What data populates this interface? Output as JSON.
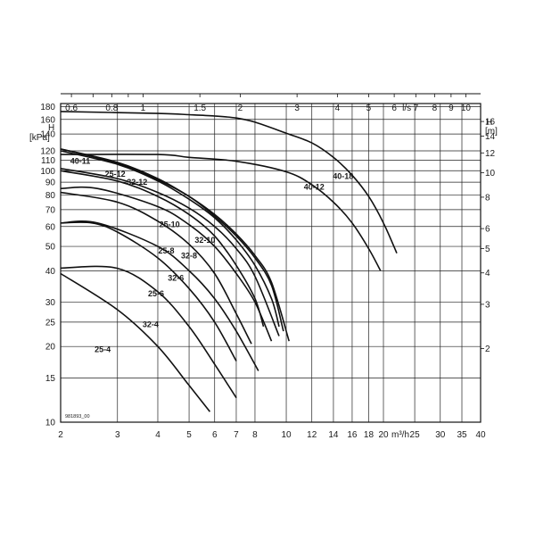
{
  "chart_data": {
    "type": "line",
    "x_scale": "log",
    "y_scale": "log",
    "grid": true,
    "x_axis_bottom": {
      "label": "m³/h",
      "range": [
        2,
        40
      ],
      "ticks": [
        2,
        3,
        4,
        5,
        6,
        7,
        8,
        10,
        12,
        14,
        16,
        18,
        20,
        25,
        30,
        35,
        40
      ],
      "tick_labels": [
        "2",
        "3",
        "4",
        "5",
        "6",
        "7",
        "8",
        "10",
        "12",
        "14",
        "16",
        "18",
        "20 m³/h",
        "25",
        "30",
        "35",
        "40"
      ]
    },
    "x_axis_top": {
      "label": "l/s",
      "ticks": [
        0.6,
        0.8,
        1,
        1.5,
        2,
        3,
        4,
        5,
        6,
        7,
        8,
        9,
        10
      ],
      "tick_labels": [
        "0.6",
        "0.8",
        "1",
        "1.5",
        "2",
        "3",
        "4",
        "5",
        "6 l/s",
        "7",
        "8",
        "9",
        "10"
      ]
    },
    "y_axis_left": {
      "title": "H",
      "unit": "[kPa]",
      "range": [
        10,
        180
      ],
      "ticks": [
        10,
        15,
        20,
        25,
        30,
        40,
        50,
        60,
        70,
        80,
        90,
        100,
        110,
        120,
        140,
        160,
        180
      ],
      "tick_labels": [
        "10",
        "15",
        "20",
        "25",
        "30",
        "40",
        "50",
        "60",
        "70",
        "80",
        "90",
        "100",
        "110",
        "120",
        "140",
        "160",
        "180"
      ]
    },
    "y_axis_right": {
      "title": "H",
      "unit": "[m]",
      "ticks": [
        2,
        3,
        4,
        5,
        6,
        8,
        10,
        12,
        14,
        16
      ],
      "tick_labels": [
        "2",
        "3",
        "4",
        "5",
        "6",
        "8",
        "10",
        "12",
        "14",
        "16"
      ]
    },
    "series": [
      {
        "name": "25-4",
        "x": [
          2.0,
          3.0,
          4.0,
          5.0,
          5.8
        ],
        "y": [
          39,
          28,
          20,
          14,
          11
        ]
      },
      {
        "name": "32-4",
        "x": [
          2.0,
          2.98,
          4.0,
          5.0,
          6.0,
          7.0
        ],
        "y": [
          41,
          41,
          33,
          24,
          17,
          12.5
        ]
      },
      {
        "name": "25-6",
        "x": [
          2.0,
          2.5,
          3.0,
          4.0,
          5.0,
          6.0,
          7.0
        ],
        "y": [
          62,
          62,
          57,
          45,
          34,
          25,
          17.5
        ]
      },
      {
        "name": "32-6",
        "x": [
          2.0,
          2.6,
          4.0,
          5.0,
          6.0,
          7.0,
          8.2
        ],
        "y": [
          62,
          62,
          50,
          40,
          31,
          23,
          16
        ]
      },
      {
        "name": "25-8",
        "x": [
          2.0,
          3.0,
          4.0,
          5.0,
          6.0,
          7.0,
          7.8
        ],
        "y": [
          82,
          75,
          63,
          51,
          39,
          27,
          20.5
        ]
      },
      {
        "name": "32-8",
        "x": [
          2.0,
          2.6,
          4.0,
          5.0,
          6.0,
          7.0,
          8.0,
          9.0
        ],
        "y": [
          85,
          85,
          72,
          61,
          50,
          39,
          30,
          21
        ]
      },
      {
        "name": "25-10",
        "x": [
          2.0,
          3.0,
          4.0,
          5.0,
          6.0,
          7.0,
          8.0,
          8.5
        ],
        "y": [
          100,
          91,
          79,
          67,
          55,
          42,
          31,
          24
        ]
      },
      {
        "name": "32-10",
        "x": [
          2.0,
          3.0,
          4.0,
          5.0,
          6.0,
          7.0,
          8.0,
          9.5
        ],
        "y": [
          102,
          93,
          82,
          71,
          60,
          49,
          38,
          22
        ]
      },
      {
        "name": "25-12",
        "x": [
          2.0,
          3.0,
          4.0,
          5.0,
          6.0,
          7.0,
          8.0,
          9.0,
          9.5
        ],
        "y": [
          120,
          106,
          91,
          77,
          65,
          53,
          42,
          31,
          24
        ]
      },
      {
        "name": "32-12",
        "x": [
          2.0,
          3.0,
          4.0,
          5.0,
          6.0,
          7.0,
          8.0,
          9.0,
          10.2
        ],
        "y": [
          122,
          108,
          93,
          79,
          67,
          56,
          46,
          36,
          21
        ]
      },
      {
        "name": "40-11",
        "x": [
          2.0,
          3.0,
          4.0,
          5.0,
          6.0,
          7.0,
          8.0,
          9.0,
          9.8
        ],
        "y": [
          122,
          107,
          92,
          79,
          66,
          55,
          45,
          35,
          23
        ]
      },
      {
        "name": "40-12",
        "x": [
          2.0,
          4.0,
          5.0,
          7.0,
          10.0,
          12.0,
          14.0,
          16.0,
          18.0,
          19.6
        ],
        "y": [
          116,
          116,
          113,
          109,
          99,
          88,
          75,
          62,
          49,
          40
        ]
      },
      {
        "name": "40-18",
        "x": [
          2.0,
          4.0,
          5.0,
          6.0,
          7.0,
          8.0,
          10.0,
          12.0,
          14.0,
          16.0,
          18.0,
          20.0,
          22.0
        ],
        "y": [
          172,
          169,
          167,
          165,
          162,
          156,
          141,
          129,
          113,
          96,
          79,
          62,
          47
        ]
      }
    ],
    "labels": [
      "25-4",
      "32-4",
      "25-6",
      "32-6",
      "25-8",
      "32-8",
      "25-10",
      "32-10",
      "25-12",
      "32-12",
      "40-11",
      "40-12",
      "40-18"
    ],
    "figure_code": "981893_00"
  }
}
